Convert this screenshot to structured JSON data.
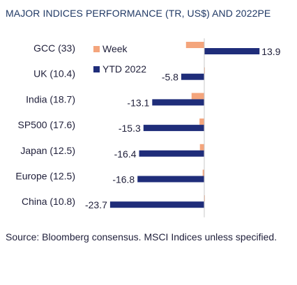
{
  "title": "MAJOR INDICES PERFORMANCE (TR, US$) AND 2022PE",
  "source": "Source: Bloomberg consensus. MSCI Indices unless specified.",
  "colors": {
    "week": "#f4a57c",
    "ytd": "#1f2d7a",
    "axis": "#c8c8c8"
  },
  "chart_data": {
    "type": "bar",
    "orientation": "horizontal",
    "title": "MAJOR INDICES PERFORMANCE (TR, US$) AND 2022PE",
    "categories": [
      "GCC (33)",
      "UK (10.4)",
      "India (18.7)",
      "SP500 (17.6)",
      "Japan (12.5)",
      "Europe (12.5)",
      "China (10.8)"
    ],
    "series": [
      {
        "name": "Week",
        "values": [
          -4.6,
          -0.1,
          -3.2,
          -1.2,
          -1.1,
          -0.4,
          -0.1
        ]
      },
      {
        "name": "YTD 2022",
        "values": [
          13.9,
          -5.8,
          -13.1,
          -15.3,
          -16.4,
          -16.8,
          -23.7
        ]
      }
    ],
    "data_labels": [
      "13.9",
      "-5.8",
      "-13.1",
      "-15.3",
      "-16.4",
      "-16.8",
      "-23.7"
    ],
    "xlim": [
      -25,
      15
    ],
    "legend": "top-left",
    "grid": false
  }
}
